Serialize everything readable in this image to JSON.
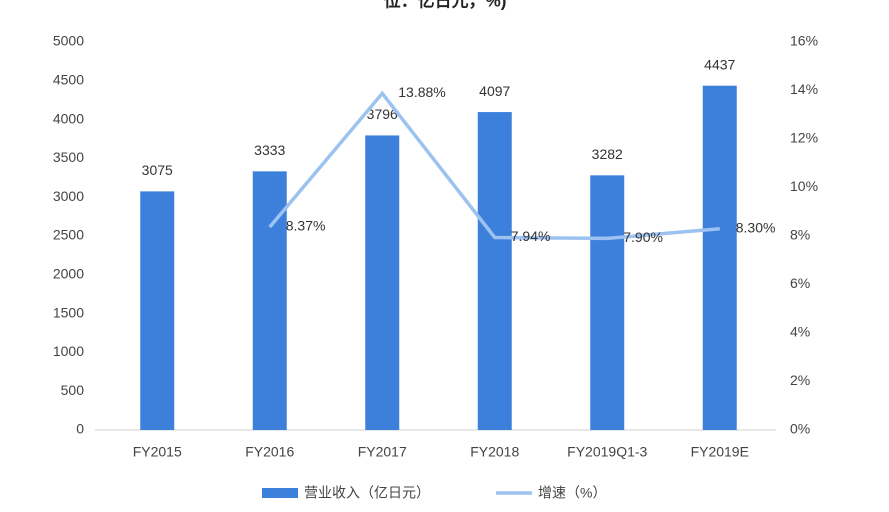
{
  "chart_data": {
    "type": "bar_line",
    "title": "位：亿日元，%)",
    "categories": [
      "FY2015",
      "FY2016",
      "FY2017",
      "FY2018",
      "FY2019Q1-3",
      "FY2019E"
    ],
    "series": [
      {
        "name": "营业收入（亿日元）",
        "type": "bar",
        "color": "#3d80dc",
        "values": [
          3075,
          3333,
          3796,
          4097,
          3282,
          4437
        ]
      },
      {
        "name": "增速（%）",
        "type": "line",
        "axis": "y2",
        "color": "#9cc2f0",
        "values": [
          null,
          8.37,
          13.88,
          7.94,
          7.9,
          8.3
        ],
        "value_labels": [
          null,
          "8.37%",
          "13.88%",
          "7.94%",
          "7.90%",
          "8.30%"
        ]
      }
    ],
    "ylim": [
      0,
      5000
    ],
    "yticks": [
      0,
      500,
      1000,
      1500,
      2000,
      2500,
      3000,
      3500,
      4000,
      4500,
      5000
    ],
    "y2lim": [
      0,
      16
    ],
    "y2ticks": [
      {
        "value": 0,
        "label": "0%"
      },
      {
        "value": 2,
        "label": "2%"
      },
      {
        "value": 4,
        "label": "4%"
      },
      {
        "value": 6,
        "label": "6%"
      },
      {
        "value": 8,
        "label": "8%"
      },
      {
        "value": 10,
        "label": "10%"
      },
      {
        "value": 12,
        "label": "12%"
      },
      {
        "value": 14,
        "label": "14%"
      },
      {
        "value": 16,
        "label": "16%"
      }
    ],
    "legend": "bottom"
  }
}
